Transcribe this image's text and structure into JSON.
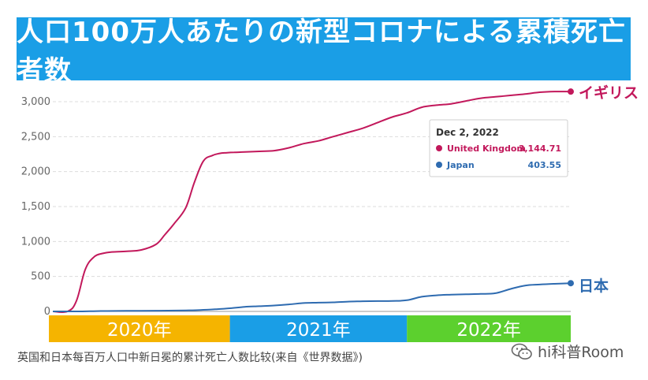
{
  "header": {
    "title": "人口100万人あたりの新型コロナによる累積死亡者数"
  },
  "chart_data": {
    "type": "line",
    "ylim": [
      0,
      3150
    ],
    "yticks": [
      0,
      500,
      1000,
      1500,
      2000,
      2500,
      3000
    ],
    "ytick_labels": [
      "0",
      "500",
      "1,000",
      "1,500",
      "2,000",
      "2,500",
      "3,000"
    ],
    "xlim": [
      0,
      35.1
    ],
    "x_unit": "months since Jan 2020",
    "series": [
      {
        "name": "United Kingdom",
        "end_label": "イギリス",
        "color": "#c2185b",
        "x": [
          0,
          1,
          1.6,
          2.2,
          2.8,
          3.4,
          4,
          5,
          6,
          7,
          7.6,
          8.2,
          9,
          9.6,
          10.2,
          10.8,
          11.3,
          11.8,
          12.3,
          13,
          14,
          15,
          16,
          17,
          18,
          19,
          20,
          21,
          22,
          23,
          24,
          25,
          26,
          27,
          28,
          29,
          30,
          31,
          32,
          33,
          34,
          35.1
        ],
        "values": [
          0,
          0,
          150,
          600,
          780,
          830,
          850,
          860,
          880,
          960,
          1100,
          1250,
          1480,
          1850,
          2150,
          2230,
          2260,
          2270,
          2275,
          2280,
          2290,
          2300,
          2340,
          2400,
          2440,
          2500,
          2560,
          2620,
          2700,
          2780,
          2840,
          2920,
          2950,
          2970,
          3010,
          3050,
          3070,
          3090,
          3110,
          3135,
          3145,
          3144.71
        ]
      },
      {
        "name": "Japan",
        "end_label": "日本",
        "color": "#2e6bb0",
        "x": [
          0,
          2,
          3,
          5,
          7,
          9,
          10,
          11,
          12,
          13,
          14,
          15,
          16,
          17,
          18,
          19,
          20,
          21,
          22,
          23,
          24,
          25,
          26,
          27,
          28,
          29,
          30,
          31,
          32,
          33,
          34,
          35.1
        ],
        "values": [
          0,
          0,
          5,
          8,
          10,
          15,
          20,
          30,
          45,
          65,
          75,
          85,
          100,
          120,
          125,
          130,
          140,
          145,
          148,
          150,
          160,
          210,
          230,
          240,
          245,
          250,
          260,
          320,
          370,
          385,
          395,
          403.55
        ]
      }
    ],
    "tooltip": {
      "date": "Dec 2, 2022",
      "rows": [
        {
          "name": "United Kingdom",
          "value": "3,144.71",
          "color": "#c2185b"
        },
        {
          "name": "Japan",
          "value": "403.55",
          "color": "#2e6bb0"
        }
      ]
    },
    "year_bands": [
      {
        "label": "2020年",
        "color": "#f5b400",
        "from": 0,
        "to": 12
      },
      {
        "label": "2021年",
        "color": "#1a9ee6",
        "from": 12,
        "to": 24
      },
      {
        "label": "2022年",
        "color": "#5cd02e",
        "from": 24,
        "to": 35.1
      }
    ]
  },
  "footer": {
    "caption": "英国和日本每百万人口中新日冕的累计死亡人数比较(来自《世界数据》)",
    "watermark": "hi科普Room"
  }
}
